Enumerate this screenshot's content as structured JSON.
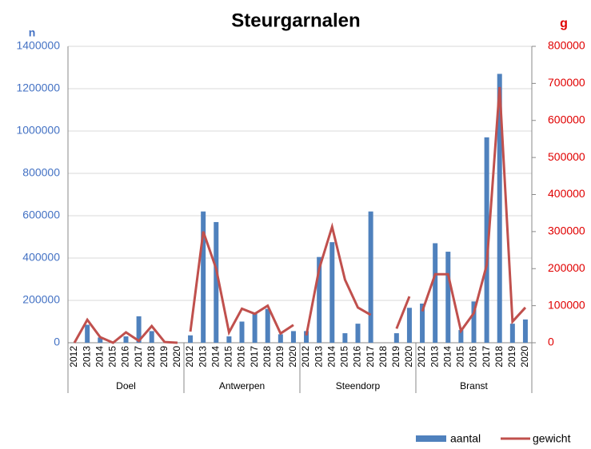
{
  "chart_data": {
    "type": "bar_line",
    "title": "Steurgarnalen",
    "y_label": "n",
    "y2_label": "g",
    "categories": [
      "2012",
      "2013",
      "2014",
      "2015",
      "2016",
      "2017",
      "2018",
      "2019",
      "2020",
      "2012",
      "2013",
      "2014",
      "2015",
      "2016",
      "2017",
      "2018",
      "2019",
      "2020",
      "2012",
      "2013",
      "2014",
      "2015",
      "2016",
      "2017",
      "2018",
      "2019",
      "2020",
      "2012",
      "2013",
      "2014",
      "2015",
      "2016",
      "2017",
      "2018",
      "2019",
      "2020"
    ],
    "groups": [
      "Doel",
      "Antwerpen",
      "Steendorp",
      "Branst"
    ],
    "series": [
      {
        "name": "aantal",
        "color": "#4f81bd",
        "axis": "y",
        "values": [
          0,
          85000,
          25000,
          0,
          30000,
          125000,
          55000,
          0,
          0,
          35000,
          620000,
          570000,
          30000,
          100000,
          140000,
          160000,
          40000,
          55000,
          55000,
          405000,
          475000,
          45000,
          90000,
          620000,
          0,
          45000,
          165000,
          185000,
          470000,
          430000,
          60000,
          195000,
          970000,
          1270000,
          90000,
          110000
        ]
      },
      {
        "name": "gewicht",
        "color": "#c0504d",
        "axis": "y2",
        "values": [
          0,
          62000,
          15000,
          0,
          28000,
          5000,
          45000,
          2000,
          0,
          30000,
          300000,
          200000,
          28000,
          92000,
          78000,
          100000,
          25000,
          48000,
          20000,
          200000,
          313000,
          170000,
          95000,
          75000,
          null,
          38000,
          125000,
          85000,
          185000,
          185000,
          32000,
          80000,
          210000,
          690000,
          57000,
          95000
        ]
      }
    ],
    "ylim": [
      0,
      1400000
    ],
    "yticks": [
      0,
      200000,
      400000,
      600000,
      800000,
      1000000,
      1200000,
      1400000
    ],
    "y2lim": [
      0,
      800000
    ],
    "y2ticks": [
      0,
      100000,
      200000,
      300000,
      400000,
      500000,
      600000,
      700000,
      800000
    ],
    "grid": true,
    "legend": "bottom-right"
  }
}
